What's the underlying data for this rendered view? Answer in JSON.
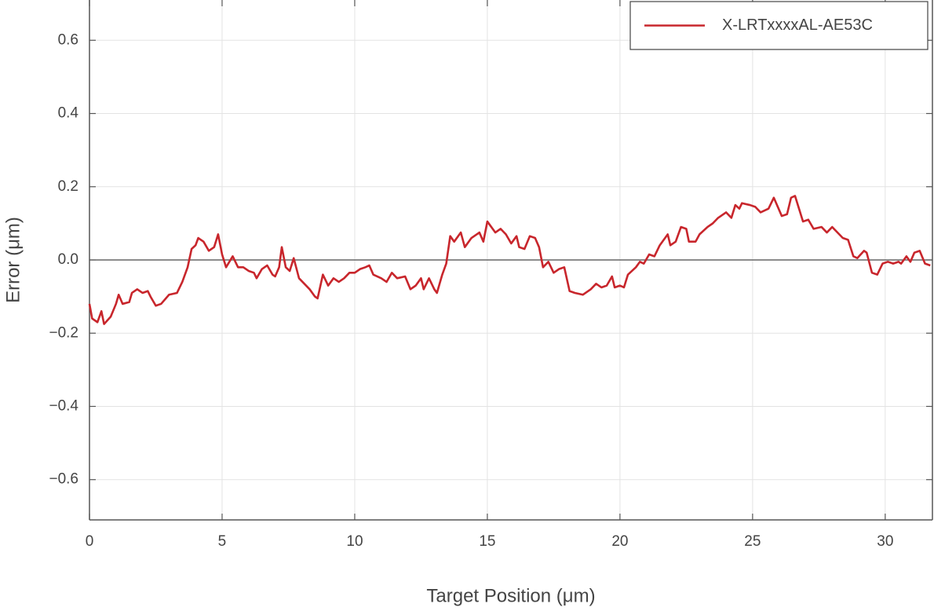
{
  "chart_data": {
    "type": "line",
    "xlabel": "Target Position (μm)",
    "ylabel": "Error (μm)",
    "xlim": [
      0,
      31.78
    ],
    "ylim": [
      -0.71,
      0.71
    ],
    "xticks": [
      0,
      5,
      10,
      15,
      20,
      25,
      30
    ],
    "yticks": [
      {
        "value": -0.6,
        "label": "−0.6"
      },
      {
        "value": -0.4,
        "label": "−0.4"
      },
      {
        "value": -0.2,
        "label": "−0.2"
      },
      {
        "value": 0,
        "label": "0.0"
      },
      0.2,
      0.4,
      0.6
    ],
    "grid": true,
    "zero_line": true,
    "legend": "upper right",
    "x": [
      0,
      0.1,
      0.3,
      0.45,
      0.55,
      0.8,
      1.0,
      1.1,
      1.25,
      1.5,
      1.6,
      1.8,
      2.0,
      2.2,
      2.3,
      2.5,
      2.7,
      3.0,
      3.3,
      3.5,
      3.7,
      3.85,
      4.0,
      4.1,
      4.3,
      4.5,
      4.7,
      4.85,
      5.0,
      5.15,
      5.4,
      5.6,
      5.8,
      6.0,
      6.2,
      6.3,
      6.5,
      6.7,
      6.9,
      7.0,
      7.15,
      7.25,
      7.4,
      7.55,
      7.7,
      7.9,
      8.1,
      8.3,
      8.5,
      8.6,
      8.8,
      9.0,
      9.2,
      9.4,
      9.6,
      9.8,
      10.0,
      10.2,
      10.4,
      10.55,
      10.7,
      11.0,
      11.2,
      11.4,
      11.6,
      11.9,
      12.1,
      12.3,
      12.5,
      12.6,
      12.8,
      13.0,
      13.1,
      13.3,
      13.45,
      13.6,
      13.75,
      14.0,
      14.15,
      14.4,
      14.7,
      14.85,
      15.0,
      15.3,
      15.5,
      15.7,
      15.9,
      16.1,
      16.2,
      16.4,
      16.6,
      16.8,
      16.95,
      17.1,
      17.3,
      17.5,
      17.7,
      17.9,
      18.1,
      18.3,
      18.6,
      18.9,
      19.1,
      19.3,
      19.5,
      19.7,
      19.8,
      20.0,
      20.15,
      20.3,
      20.6,
      20.75,
      20.9,
      21.1,
      21.3,
      21.5,
      21.8,
      21.9,
      22.1,
      22.3,
      22.5,
      22.6,
      22.85,
      23.0,
      23.3,
      23.5,
      23.7,
      24.0,
      24.2,
      24.35,
      24.5,
      24.6,
      24.9,
      25.1,
      25.3,
      25.6,
      25.8,
      26.1,
      26.3,
      26.45,
      26.6,
      26.9,
      27.1,
      27.3,
      27.6,
      27.8,
      28.0,
      28.4,
      28.6,
      28.8,
      28.95,
      29.2,
      29.3,
      29.5,
      29.7,
      29.9,
      30.1,
      30.3,
      30.5,
      30.6,
      30.8,
      30.95,
      31.1,
      31.3,
      31.5,
      31.7
    ],
    "series": [
      {
        "name": "X-LRTxxxxAL-AE53C",
        "color": "#c8262c",
        "values": [
          -0.12,
          -0.16,
          -0.17,
          -0.14,
          -0.175,
          -0.155,
          -0.12,
          -0.095,
          -0.12,
          -0.115,
          -0.09,
          -0.08,
          -0.09,
          -0.085,
          -0.1,
          -0.125,
          -0.12,
          -0.095,
          -0.09,
          -0.06,
          -0.02,
          0.03,
          0.04,
          0.06,
          0.05,
          0.025,
          0.035,
          0.07,
          0.015,
          -0.02,
          0.01,
          -0.02,
          -0.02,
          -0.03,
          -0.035,
          -0.05,
          -0.025,
          -0.015,
          -0.04,
          -0.045,
          -0.02,
          0.035,
          -0.02,
          -0.03,
          0.005,
          -0.05,
          -0.065,
          -0.08,
          -0.1,
          -0.105,
          -0.04,
          -0.07,
          -0.05,
          -0.06,
          -0.05,
          -0.035,
          -0.035,
          -0.025,
          -0.02,
          -0.015,
          -0.04,
          -0.05,
          -0.06,
          -0.035,
          -0.05,
          -0.045,
          -0.08,
          -0.07,
          -0.05,
          -0.08,
          -0.05,
          -0.08,
          -0.09,
          -0.04,
          -0.01,
          0.065,
          0.05,
          0.075,
          0.035,
          0.06,
          0.075,
          0.05,
          0.105,
          0.075,
          0.085,
          0.07,
          0.045,
          0.065,
          0.035,
          0.03,
          0.065,
          0.06,
          0.035,
          -0.02,
          -0.005,
          -0.035,
          -0.025,
          -0.02,
          -0.085,
          -0.09,
          -0.095,
          -0.08,
          -0.065,
          -0.075,
          -0.07,
          -0.045,
          -0.075,
          -0.07,
          -0.075,
          -0.04,
          -0.02,
          -0.005,
          -0.01,
          0.015,
          0.01,
          0.04,
          0.07,
          0.04,
          0.05,
          0.09,
          0.085,
          0.05,
          0.05,
          0.07,
          0.09,
          0.1,
          0.115,
          0.13,
          0.115,
          0.15,
          0.14,
          0.155,
          0.15,
          0.145,
          0.13,
          0.14,
          0.17,
          0.12,
          0.125,
          0.17,
          0.175,
          0.105,
          0.11,
          0.085,
          0.09,
          0.075,
          0.09,
          0.06,
          0.055,
          0.01,
          0.005,
          0.025,
          0.02,
          -0.035,
          -0.04,
          -0.01,
          -0.005,
          -0.01,
          -0.005,
          -0.01,
          0.01,
          -0.005,
          0.02,
          0.025,
          -0.01,
          -0.015
        ]
      }
    ]
  }
}
